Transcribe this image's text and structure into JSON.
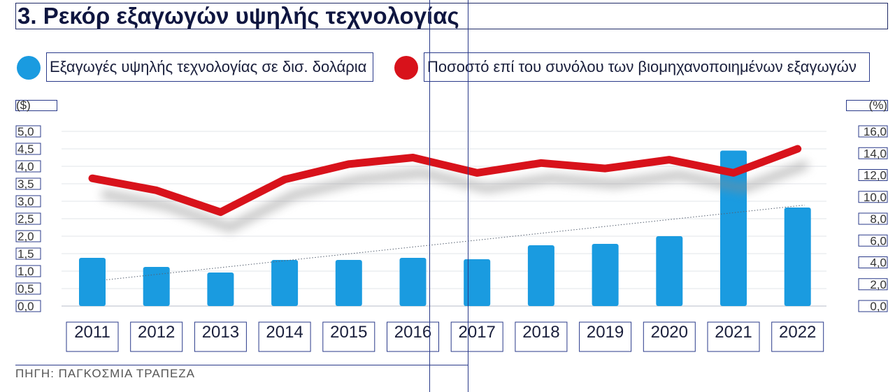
{
  "header": {
    "title": "3. Ρεκόρ εξαγωγών υψηλής τεχνολογίας"
  },
  "legend": {
    "bars_label": "Εξαγωγές υψηλής τεχνολογίας σε δισ. δολάρια",
    "line_label": "Ποσοστό επί του συνόλου των βιομηχανοποιημένων εξαγωγών",
    "bar_color": "#1a9be0",
    "line_color": "#d8121b"
  },
  "axes": {
    "left_unit": "($)",
    "right_unit": "(%)"
  },
  "source": "ΠΗΓΗ: ΠΑΓΚΟΣΜΙΑ ΤΡΑΠΕΖΑ",
  "chart_data": {
    "type": "bar",
    "categories": [
      "2011",
      "2012",
      "2013",
      "2014",
      "2015",
      "2016",
      "2017",
      "2018",
      "2019",
      "2020",
      "2021",
      "2022"
    ],
    "series": [
      {
        "name": "Εξαγωγές υψηλής τεχνολογίας σε δισ. δολάρια",
        "type": "bar",
        "axis": "left",
        "values": [
          1.38,
          1.12,
          0.96,
          1.32,
          1.32,
          1.38,
          1.34,
          1.74,
          1.78,
          2.0,
          4.45,
          2.82
        ]
      },
      {
        "name": "Ποσοστό επί του συνόλου των βιομηχανοποιημένων εξαγωγών",
        "type": "line",
        "axis": "right",
        "values": [
          11.7,
          10.6,
          8.6,
          11.6,
          13.0,
          13.6,
          12.2,
          13.1,
          12.6,
          13.4,
          12.2,
          14.4
        ]
      }
    ],
    "trendline": {
      "series": "bars",
      "type": "linear",
      "style": "dotted"
    },
    "left_ticks": [
      "5,0",
      "4,5",
      "4,0",
      "3,5",
      "3,0",
      "2,5",
      "2,0",
      "1,5",
      "1,0",
      "0,5",
      "0,0"
    ],
    "right_ticks": [
      "16,0",
      "14,0",
      "12,0",
      "10,0",
      "8,0",
      "6,0",
      "4,0",
      "2,0",
      "0,0"
    ],
    "ylim_left": [
      0,
      5
    ],
    "ylim_right": [
      0,
      16
    ],
    "grid": true
  }
}
